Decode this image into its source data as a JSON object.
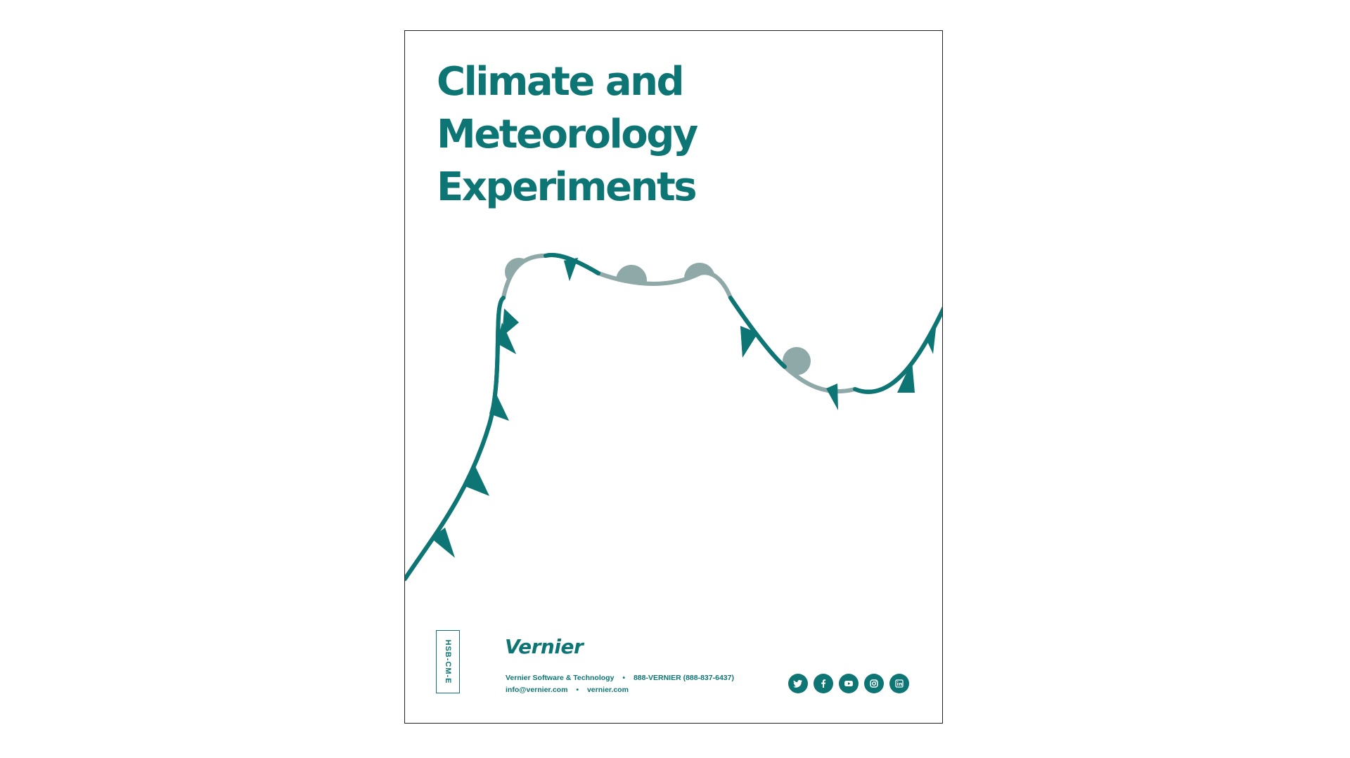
{
  "cover": {
    "title_line1": "Climate and Meteorology",
    "title_line2": "Experiments",
    "product_code": "HSB-CM-E"
  },
  "footer": {
    "brand": "Vernier",
    "company": "Vernier Software & Technology",
    "phone": "888-VERNIER (888-837-6437)",
    "email": "info@vernier.com",
    "website": "vernier.com",
    "separator": "•",
    "social_icons": [
      "twitter-icon",
      "facebook-icon",
      "youtube-icon",
      "instagram-icon",
      "linkedin-icon"
    ]
  },
  "colors": {
    "accent": "#0d7574",
    "warm_front": "#8fa9a9",
    "border": "#222222"
  }
}
